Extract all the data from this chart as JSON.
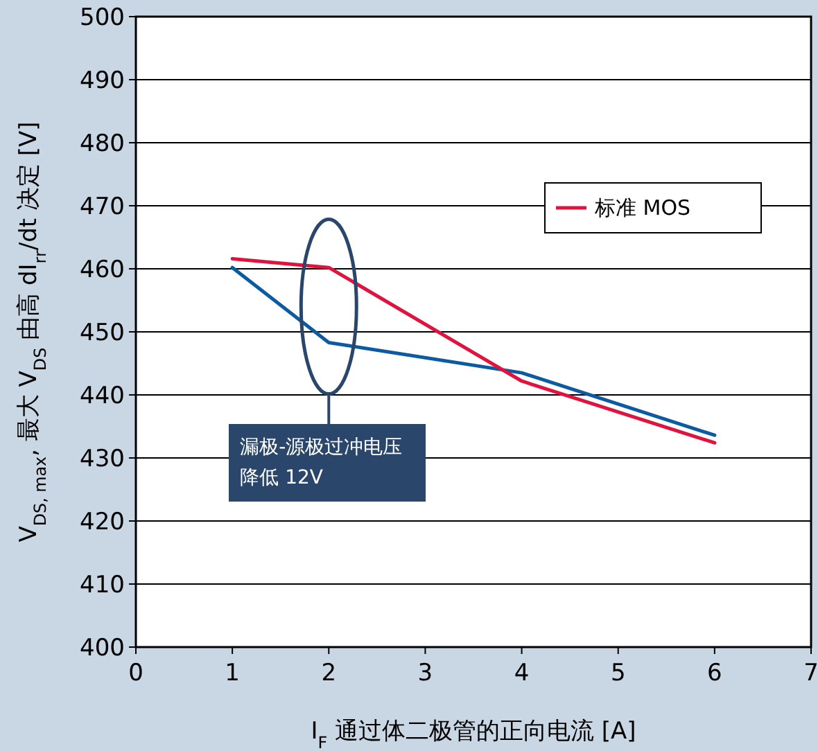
{
  "chart_data": {
    "type": "line",
    "xlabel": "I$_{F}$ 通过体二极管的正向电流 [A]",
    "ylabel": "V$_{DS, max}$, 最大 V$_{DS}$ 由高 dI$_{rr}$/dt 决定 [V]",
    "x": [
      1,
      2,
      4,
      6
    ],
    "series": [
      {
        "color": "#0b5aa2",
        "values": [
          460.2,
          448.3,
          443.5,
          433.6
        ]
      },
      {
        "name": "标准 MOS",
        "color": "#e2123f",
        "values": [
          461.6,
          460.2,
          442.2,
          432.4
        ]
      }
    ],
    "xlim": [
      0,
      7
    ],
    "xticks": [
      0,
      1,
      2,
      3,
      4,
      5,
      6,
      7
    ],
    "ylim": [
      400,
      500
    ],
    "yticks": [
      400,
      410,
      420,
      430,
      440,
      450,
      460,
      470,
      480,
      490,
      500
    ],
    "grid": "y",
    "legend": "top right",
    "annotations": [
      "漏极-源极过冲电压降低 12V"
    ]
  }
}
